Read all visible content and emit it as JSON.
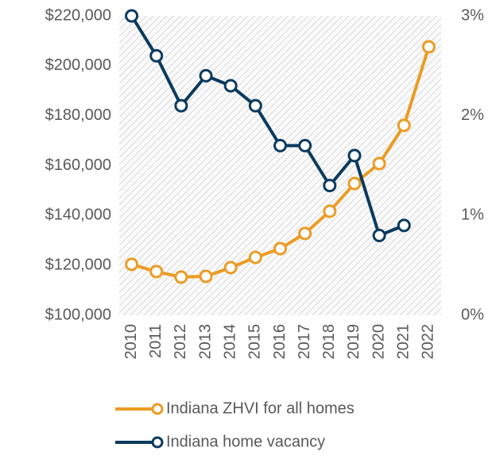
{
  "chart_data": {
    "type": "line",
    "categories": [
      "2010",
      "2011",
      "2012",
      "2013",
      "2014",
      "2015",
      "2016",
      "2017",
      "2018",
      "2019",
      "2020",
      "2021",
      "2022"
    ],
    "series": [
      {
        "name": "Indiana ZHVI for all homes",
        "color": "#eb9c25",
        "values": [
          120400,
          117500,
          115300,
          115600,
          119100,
          123200,
          126700,
          132800,
          141700,
          152800,
          160800,
          176100,
          207600
        ]
      },
      {
        "name": "Indiana home vacancy",
        "color": "#0b3a5e",
        "axis": "y2",
        "values": [
          3.0,
          2.6,
          2.1,
          2.4,
          2.3,
          2.1,
          1.7,
          1.7,
          1.3,
          1.6,
          0.8,
          0.9,
          null
        ]
      }
    ],
    "ylim": [
      100000,
      220000
    ],
    "yticks": [
      {
        "value": 100000,
        "label": "$100,000"
      },
      {
        "value": 120000,
        "label": "$120,000"
      },
      {
        "value": 140000,
        "label": "$140,000"
      },
      {
        "value": 160000,
        "label": "$160,000"
      },
      {
        "value": 180000,
        "label": "$180,000"
      },
      {
        "value": 200000,
        "label": "$200,000"
      },
      {
        "value": 220000,
        "label": "$220,000"
      }
    ],
    "y2lim": [
      0,
      3
    ],
    "y2ticks": [
      {
        "value": 0,
        "label": "0%"
      },
      {
        "value": 1,
        "label": "1%"
      },
      {
        "value": 2,
        "label": "2%"
      },
      {
        "value": 3,
        "label": "3%"
      }
    ],
    "grid": false,
    "legend": "bottom"
  }
}
